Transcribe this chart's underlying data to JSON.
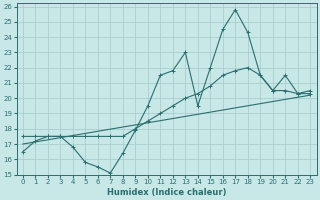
{
  "xlabel": "Humidex (Indice chaleur)",
  "bg_color": "#c8e8e8",
  "line_color": "#2a6e6e",
  "grid_color": "#aacece",
  "xlim": [
    -0.5,
    23.5
  ],
  "ylim": [
    15,
    26.2
  ],
  "xticks": [
    0,
    1,
    2,
    3,
    4,
    5,
    6,
    7,
    8,
    9,
    10,
    11,
    12,
    13,
    14,
    15,
    16,
    17,
    18,
    19,
    20,
    21,
    22,
    23
  ],
  "yticks": [
    15,
    16,
    17,
    18,
    19,
    20,
    21,
    22,
    23,
    24,
    25,
    26
  ],
  "line1_x": [
    0,
    1,
    2,
    3,
    4,
    5,
    6,
    7,
    8,
    9,
    10,
    11,
    12,
    13,
    14,
    15,
    16,
    17,
    18,
    19,
    20,
    21,
    22,
    23
  ],
  "line1_y": [
    16.5,
    17.2,
    17.5,
    17.5,
    16.8,
    15.8,
    15.5,
    15.1,
    16.4,
    17.9,
    19.5,
    21.5,
    21.8,
    23.0,
    19.5,
    22.0,
    24.5,
    25.8,
    24.3,
    21.5,
    20.5,
    21.5,
    20.3,
    20.5
  ],
  "line2_x": [
    0,
    1,
    2,
    3,
    4,
    5,
    6,
    7,
    8,
    9,
    10,
    11,
    12,
    13,
    14,
    15,
    16,
    17,
    18,
    19,
    20,
    21,
    22,
    23
  ],
  "line2_y": [
    17.5,
    17.5,
    17.5,
    17.5,
    17.5,
    17.5,
    17.5,
    17.5,
    17.5,
    18.0,
    18.5,
    19.0,
    19.5,
    20.0,
    20.3,
    20.8,
    21.5,
    21.8,
    22.0,
    21.5,
    20.5,
    20.5,
    20.3,
    20.3
  ],
  "line3_x": [
    0,
    23
  ],
  "line3_y": [
    17.0,
    20.2
  ]
}
